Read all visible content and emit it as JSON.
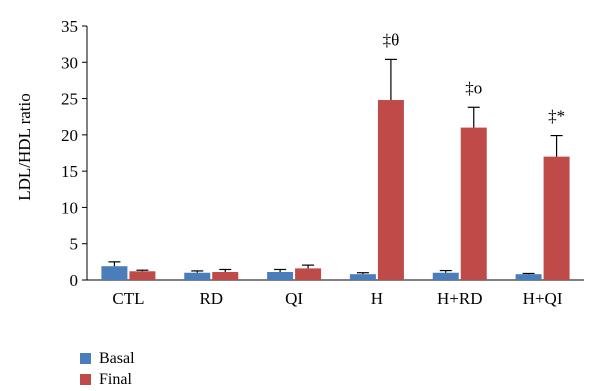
{
  "chart_data": {
    "type": "bar",
    "ylabel": "LDL/HDL ratio",
    "ylim": [
      0,
      35
    ],
    "yticks": [
      0,
      5,
      10,
      15,
      20,
      25,
      30,
      35
    ],
    "categories": [
      "CTL",
      "RD",
      "QI",
      "H",
      "H+RD",
      "H+QI"
    ],
    "series": [
      {
        "name": "Basal",
        "color": "#4a7ebb",
        "values": [
          1.9,
          1.0,
          1.1,
          0.8,
          1.0,
          0.8
        ],
        "errors": [
          0.6,
          0.25,
          0.35,
          0.2,
          0.3,
          0.1
        ]
      },
      {
        "name": "Final",
        "color": "#be4b48",
        "values": [
          1.2,
          1.1,
          1.6,
          24.8,
          21.0,
          17.0
        ],
        "errors": [
          0.15,
          0.35,
          0.45,
          5.6,
          2.8,
          2.9
        ]
      }
    ],
    "annotations": [
      "",
      "",
      "",
      "‡θ",
      "‡o",
      "‡*"
    ],
    "legend_position": "bottom-left",
    "grid": false
  }
}
